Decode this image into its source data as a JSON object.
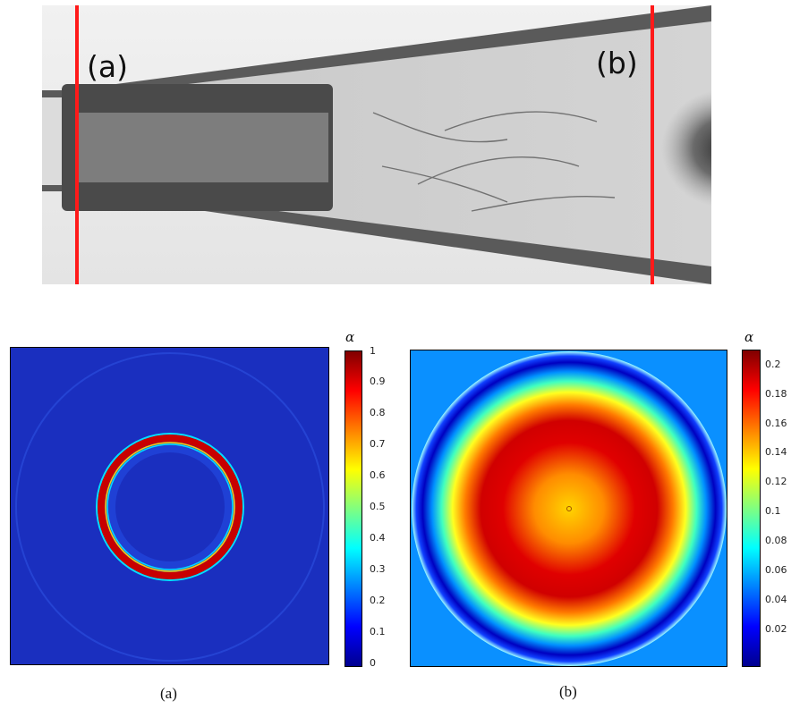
{
  "photo": {
    "label_a": "(a)",
    "label_b": "(b)"
  },
  "panel_a": {
    "colorbar_symbol": "α",
    "ticks": [
      "1",
      "0.9",
      "0.8",
      "0.7",
      "0.6",
      "0.5",
      "0.4",
      "0.3",
      "0.2",
      "0.1",
      "0"
    ],
    "caption": "(a)"
  },
  "panel_b": {
    "colorbar_symbol": "α",
    "ticks": [
      "0.2",
      "0.18",
      "0.16",
      "0.14",
      "0.12",
      "0.1",
      "0.08",
      "0.06",
      "0.04",
      "0.02"
    ],
    "caption": "(b)"
  },
  "colors": {
    "cut_line": "#ff1a1a",
    "background_blue": "#1a2fbf"
  }
}
